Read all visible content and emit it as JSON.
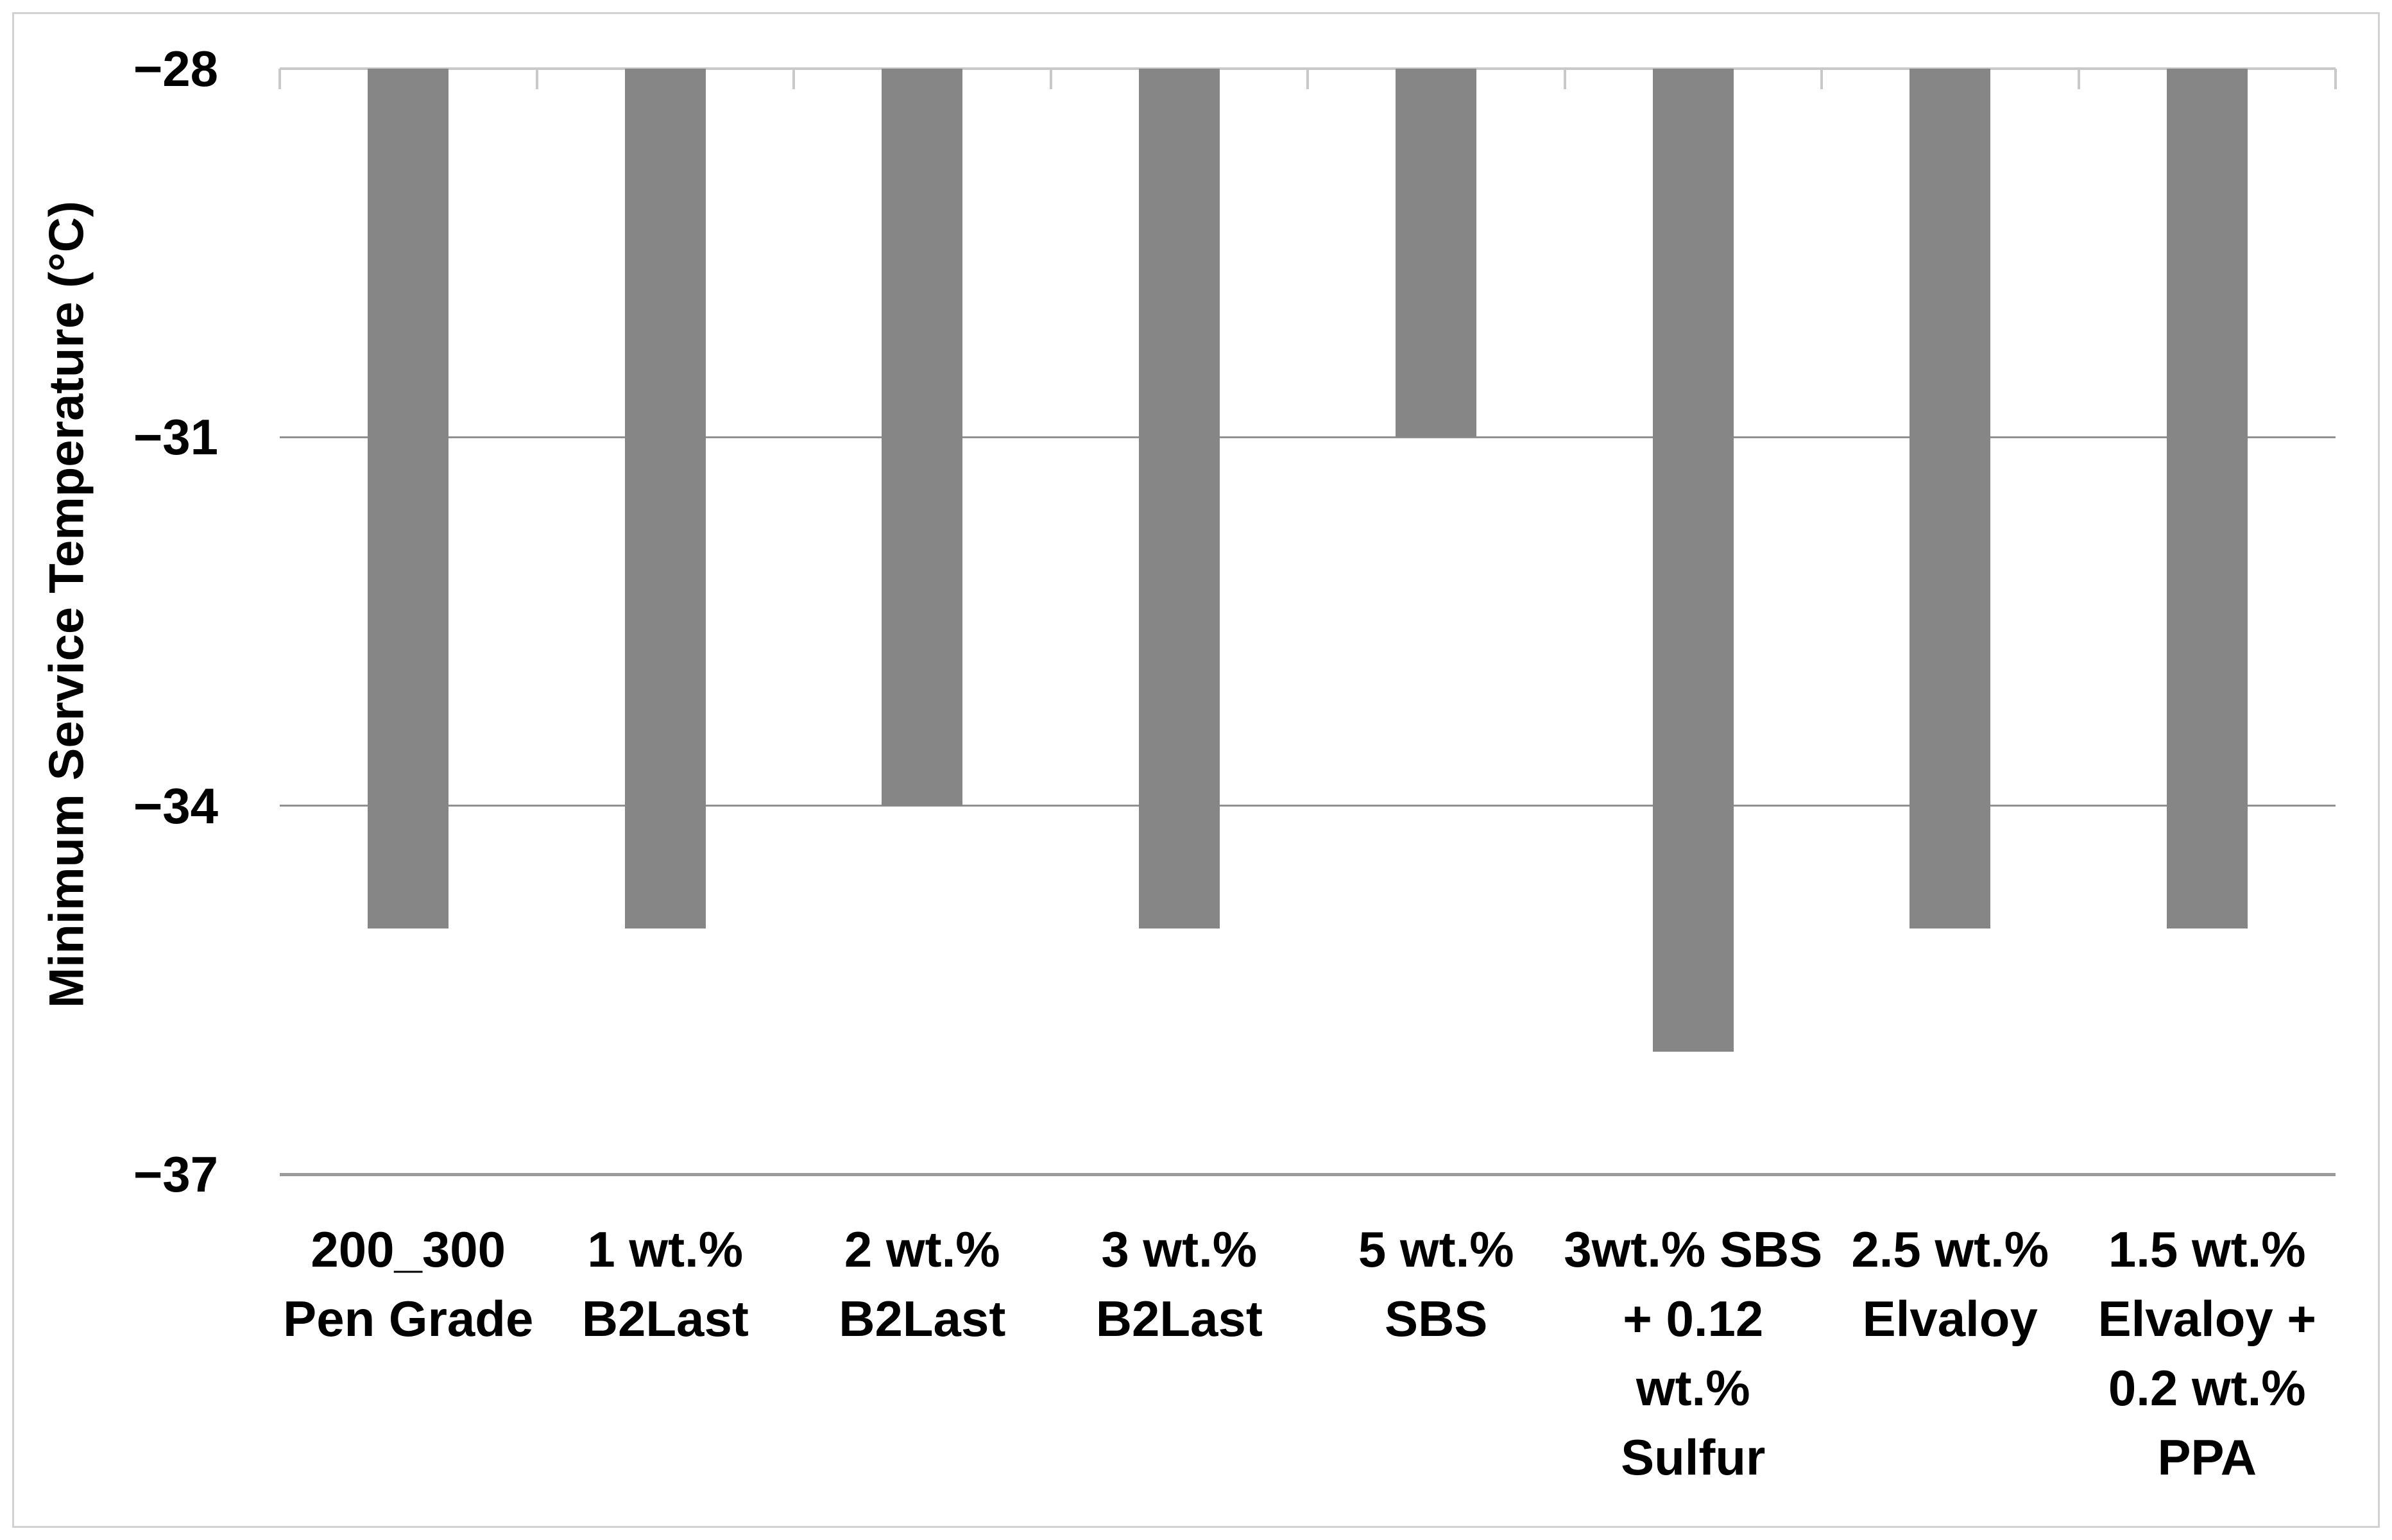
{
  "figure": {
    "background": "#ffffff",
    "border_color": "#d2d2d2"
  },
  "chart_data": {
    "type": "bar",
    "title": "",
    "xlabel": "",
    "ylabel": "Minimum Service Temperature (°C)",
    "categories": [
      "200_300\nPen Grade",
      "1 wt.%\nB2Last",
      "2 wt.%\nB2Last",
      "3 wt.%\nB2Last",
      "5 wt.%\nSBS",
      "3wt.% SBS\n+ 0.12\nwt.%\nSulfur",
      "2.5 wt.%\nElvaloy",
      "1.5 wt.%\nElvaloy +\n0.2 wt.%\nPPA"
    ],
    "values": [
      -35,
      -35,
      -34,
      -35,
      -31,
      -36,
      -35,
      -35
    ],
    "ylim": [
      -37,
      -28
    ],
    "yticks": [
      -28,
      -31,
      -34,
      -37
    ],
    "ytick_labels": [
      "−28",
      "−31",
      "−34",
      "−37"
    ],
    "bar_color": "#868686",
    "gridline_color": "#919191",
    "top_axis_color": "#c9c9c9",
    "bottom_axis_color": "#9b9b9b",
    "text_color": "#000000",
    "grid": true,
    "legend": false,
    "bars_hang_from_top": true
  }
}
